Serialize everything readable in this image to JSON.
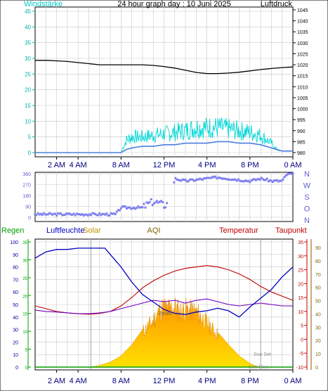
{
  "chart_data": [
    {
      "type": "line",
      "title": "24 hour graph day : 10 Juni 2025",
      "left_axis_label": "Windstärke",
      "right_axis_label": "Luftdruck",
      "x_ticks": [
        "2 AM",
        "4 AM",
        "8 AM",
        "12 PM",
        "4 PM",
        "8 PM",
        "0 AM"
      ],
      "left_ticks": [
        "0",
        "5",
        "10",
        "15",
        "20",
        "25",
        "30",
        "35",
        "40",
        "45"
      ],
      "right_ticks": [
        "980",
        "985",
        "990",
        "995",
        "1000",
        "1005",
        "1010",
        "1015",
        "1020",
        "1025",
        "1030",
        "1035",
        "1040",
        "1045"
      ],
      "ylim_left": [
        0,
        45
      ],
      "ylim_right": [
        980,
        1045
      ],
      "colors": {
        "pressure": "#000000",
        "gust": "#00d8d8",
        "wind": "#4a80e0"
      },
      "series": [
        {
          "key": "pressure",
          "axis": "right",
          "x": [
            0,
            1,
            2,
            3,
            4,
            5,
            6,
            7,
            8,
            9,
            10,
            11,
            12,
            13,
            14,
            15,
            16,
            17,
            18,
            19,
            20,
            21,
            22,
            23,
            24
          ],
          "values": [
            1022,
            1022,
            1021.8,
            1021.5,
            1021,
            1020.5,
            1020,
            1020,
            1020,
            1020,
            1020,
            1019.7,
            1019.2,
            1018.5,
            1017.5,
            1016.5,
            1016,
            1016,
            1016.2,
            1016.6,
            1017.2,
            1017.8,
            1018.3,
            1018.7,
            1019
          ]
        },
        {
          "key": "gust",
          "axis": "left",
          "x": [
            0,
            8,
            8.5,
            9,
            10,
            11,
            12,
            13,
            14,
            15,
            16,
            17,
            18,
            19,
            20,
            21,
            22,
            22.5,
            23,
            24
          ],
          "values": [
            0,
            0,
            4,
            5,
            5,
            5.5,
            6,
            6.5,
            7,
            8,
            8,
            8,
            7.5,
            7,
            6.5,
            5.5,
            3,
            1,
            0.5,
            0.5
          ]
        },
        {
          "key": "wind",
          "axis": "left",
          "x": [
            0,
            8,
            8.5,
            9,
            10,
            11,
            12,
            13,
            14,
            15,
            16,
            17,
            18,
            19,
            20,
            21,
            22,
            23,
            24
          ],
          "values": [
            0,
            0,
            1,
            1.5,
            2,
            2,
            2.5,
            2.5,
            3,
            3,
            3,
            3.5,
            3.5,
            3,
            3,
            2.5,
            1.5,
            0.5,
            0.5
          ]
        }
      ]
    },
    {
      "type": "scatter",
      "axis_letters": [
        "N",
        "W",
        "S",
        "O",
        "N"
      ],
      "y_ticks": [
        "0",
        "90",
        "180",
        "270",
        "360"
      ],
      "ylim": [
        0,
        360
      ],
      "color": "#8080f0",
      "series": [
        {
          "key": "direction",
          "x": [
            0,
            2,
            4,
            6,
            7.5,
            8,
            9,
            10,
            10.5,
            11,
            11.5,
            12,
            12.5,
            13,
            14,
            15,
            16,
            17,
            18,
            19,
            20,
            21,
            22,
            23,
            23.5
          ],
          "values": [
            25,
            25,
            25,
            25,
            25,
            80,
            80,
            80,
            110,
            130,
            120,
            100,
            120,
            320,
            300,
            310,
            320,
            330,
            320,
            310,
            300,
            320,
            300,
            300,
            360
          ]
        }
      ]
    },
    {
      "type": "line",
      "labels": {
        "rain": "Regen",
        "humidity": "Luftfeuchte",
        "solar": "Solar",
        "aqi": "AQI",
        "temperature": "Temperatur",
        "dewpoint": "Taupunkt"
      },
      "x_ticks": [
        "2 AM",
        "4 AM",
        "8 AM",
        "12 PM",
        "4 PM",
        "8 PM",
        "0 AM"
      ],
      "humidity_ticks": [
        "0",
        "10",
        "20",
        "30",
        "40",
        "50",
        "60",
        "70",
        "80",
        "90",
        "100"
      ],
      "rain_ticks": [
        "0",
        "5",
        "10",
        "15",
        "20",
        "25",
        "30",
        "35"
      ],
      "temperature_ticks": [
        "-10",
        "-5",
        "0",
        "5",
        "10",
        "15",
        "20",
        "25",
        "30",
        "35"
      ],
      "aqi_ticks": [
        "0",
        "10",
        "20",
        "30",
        "40",
        "50",
        "60",
        "70",
        "80",
        "90"
      ],
      "annotations": [
        "Sun Set",
        "Sun Rise",
        "Zenith"
      ],
      "ylim_humidity": [
        0,
        100
      ],
      "ylim_temperature": [
        -10,
        35
      ],
      "colors": {
        "humidity": "#0000c0",
        "temperature": "#c00000",
        "dewpoint": "#7000c0",
        "solar": "#f0a000",
        "rain": "#00a000"
      },
      "series": [
        {
          "key": "humidity",
          "axis": "humidity",
          "x": [
            0,
            1,
            2,
            3,
            4,
            5,
            6,
            6.5,
            7,
            8,
            9,
            10,
            11,
            12,
            13,
            14,
            15,
            16,
            17,
            18,
            19,
            20,
            21,
            22,
            23,
            24
          ],
          "values": [
            87,
            92,
            94,
            94,
            95,
            95,
            95,
            95,
            90,
            80,
            68,
            58,
            52,
            46,
            43,
            42,
            44,
            45,
            47,
            45,
            40,
            48,
            55,
            62,
            72,
            80
          ]
        },
        {
          "key": "temperature",
          "axis": "temperature",
          "x": [
            0,
            1,
            2,
            3,
            4,
            5,
            6,
            7,
            8,
            9,
            10,
            11,
            12,
            13,
            14,
            15,
            16,
            17,
            18,
            19,
            20,
            21,
            22,
            23,
            24
          ],
          "values": [
            12,
            11,
            10,
            9.5,
            9.2,
            9,
            9.3,
            10,
            12,
            15,
            18.5,
            21,
            23,
            24.5,
            25.5,
            26,
            26.5,
            26,
            25,
            23.5,
            21.5,
            19,
            17,
            15.5,
            14
          ]
        },
        {
          "key": "dewpoint",
          "axis": "temperature",
          "x": [
            0,
            1,
            2,
            3,
            4,
            5,
            6,
            7,
            8,
            9,
            10,
            11,
            12,
            13,
            14,
            15,
            16,
            17,
            18,
            19,
            20,
            21,
            22,
            23,
            24
          ],
          "values": [
            10.5,
            10,
            9.8,
            9.5,
            9.2,
            9.2,
            9.5,
            10,
            11,
            12,
            13,
            14,
            13.5,
            14,
            13,
            14,
            14.5,
            13.5,
            12.5,
            12,
            12.5,
            13,
            12.5,
            12,
            12
          ]
        },
        {
          "key": "solar",
          "axis": "humidity",
          "x": [
            5.2,
            6,
            7,
            8,
            9,
            10,
            11,
            11.5,
            12,
            12.5,
            13,
            13.5,
            14,
            15,
            16,
            17,
            18,
            19,
            20,
            20.5,
            21
          ],
          "values": [
            0,
            1.5,
            4,
            9,
            18,
            30,
            40,
            48,
            52,
            50,
            52,
            48,
            50,
            48,
            38,
            28,
            18,
            9,
            3,
            1,
            0
          ]
        },
        {
          "key": "rain",
          "axis": "humidity",
          "x": [
            0,
            24
          ],
          "values": [
            0,
            0
          ]
        }
      ]
    }
  ]
}
